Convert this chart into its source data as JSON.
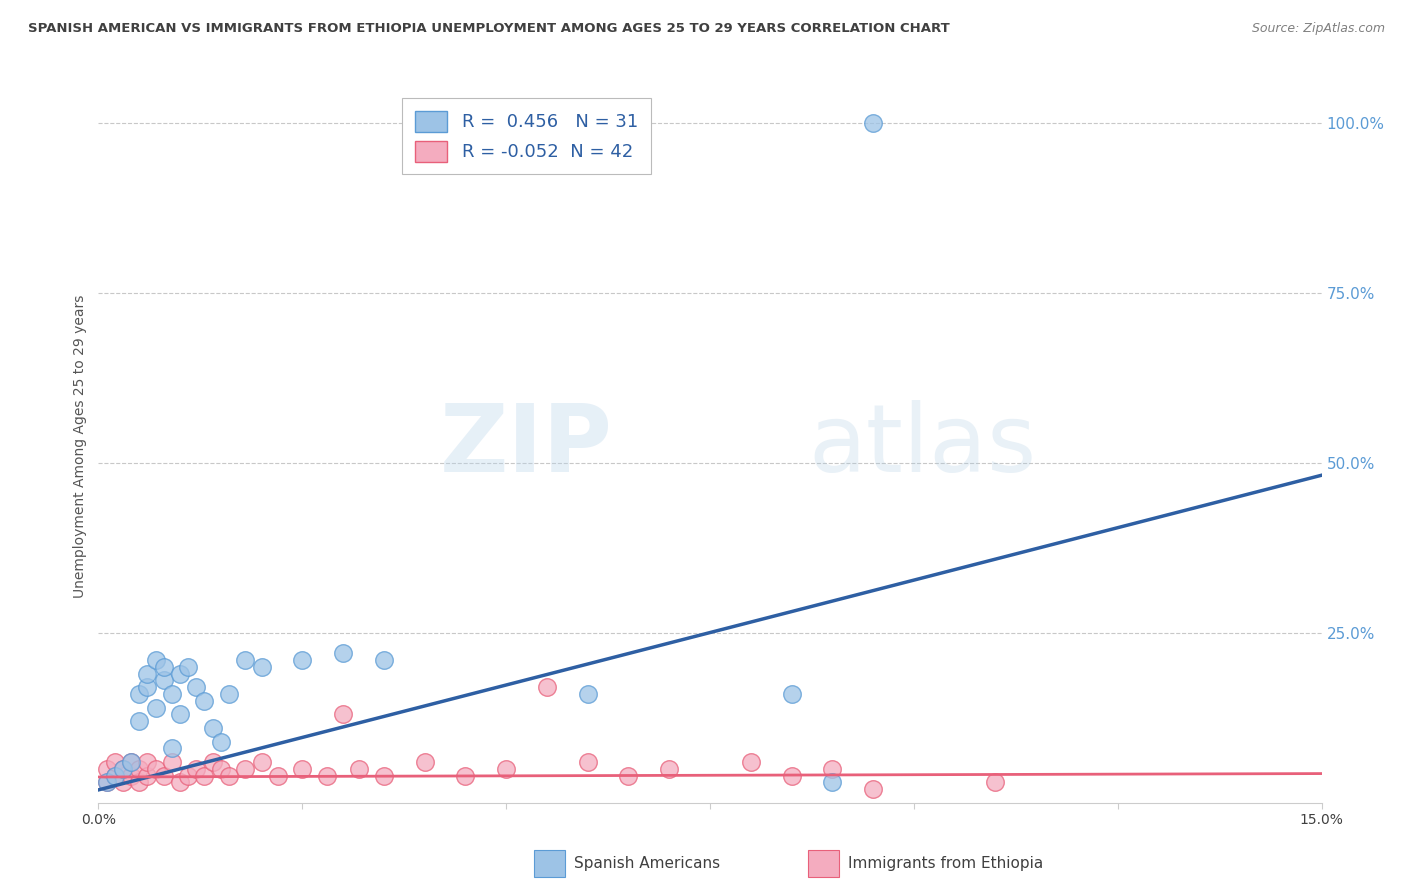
{
  "title": "SPANISH AMERICAN VS IMMIGRANTS FROM ETHIOPIA UNEMPLOYMENT AMONG AGES 25 TO 29 YEARS CORRELATION CHART",
  "source": "Source: ZipAtlas.com",
  "ylabel": "Unemployment Among Ages 25 to 29 years",
  "xlim": [
    0.0,
    0.15
  ],
  "ylim": [
    0.0,
    1.05
  ],
  "blue_R": 0.456,
  "blue_N": 31,
  "pink_R": -0.052,
  "pink_N": 42,
  "legend_label_blue": "Spanish Americans",
  "legend_label_pink": "Immigrants from Ethiopia",
  "watermark_zip": "ZIP",
  "watermark_atlas": "atlas",
  "background_color": "#ffffff",
  "blue_color": "#9DC3E6",
  "blue_edge_color": "#5B9BD5",
  "blue_line_color": "#2E5FA3",
  "pink_color": "#F4ACBF",
  "pink_edge_color": "#E8607A",
  "pink_line_color": "#E8607A",
  "grid_color": "#c8c8c8",
  "title_color": "#404040",
  "source_color": "#808080",
  "axis_label_color": "#555555",
  "right_tick_color": "#5B9BD5",
  "blue_line_x0": 0.0,
  "blue_line_y0": 0.019,
  "blue_line_x1": 0.15,
  "blue_line_y1": 0.482,
  "pink_line_x0": 0.0,
  "pink_line_y0": 0.038,
  "pink_line_x1": 0.15,
  "pink_line_y1": 0.043,
  "blue_scatter_x": [
    0.001,
    0.002,
    0.003,
    0.004,
    0.005,
    0.005,
    0.006,
    0.006,
    0.007,
    0.007,
    0.008,
    0.008,
    0.009,
    0.009,
    0.01,
    0.01,
    0.011,
    0.012,
    0.013,
    0.014,
    0.015,
    0.016,
    0.018,
    0.02,
    0.025,
    0.03,
    0.035,
    0.06,
    0.085,
    0.09,
    0.095
  ],
  "blue_scatter_y": [
    0.03,
    0.04,
    0.05,
    0.06,
    0.12,
    0.16,
    0.17,
    0.19,
    0.14,
    0.21,
    0.18,
    0.2,
    0.08,
    0.16,
    0.13,
    0.19,
    0.2,
    0.17,
    0.15,
    0.11,
    0.09,
    0.16,
    0.21,
    0.2,
    0.21,
    0.22,
    0.21,
    0.16,
    0.16,
    0.03,
    1.0
  ],
  "pink_scatter_x": [
    0.001,
    0.001,
    0.002,
    0.002,
    0.003,
    0.003,
    0.004,
    0.004,
    0.005,
    0.005,
    0.006,
    0.006,
    0.007,
    0.008,
    0.009,
    0.01,
    0.011,
    0.012,
    0.013,
    0.014,
    0.015,
    0.016,
    0.018,
    0.02,
    0.022,
    0.025,
    0.028,
    0.03,
    0.032,
    0.035,
    0.04,
    0.045,
    0.05,
    0.055,
    0.06,
    0.065,
    0.07,
    0.08,
    0.085,
    0.09,
    0.095,
    0.11
  ],
  "pink_scatter_y": [
    0.03,
    0.05,
    0.04,
    0.06,
    0.03,
    0.05,
    0.04,
    0.06,
    0.03,
    0.05,
    0.04,
    0.06,
    0.05,
    0.04,
    0.06,
    0.03,
    0.04,
    0.05,
    0.04,
    0.06,
    0.05,
    0.04,
    0.05,
    0.06,
    0.04,
    0.05,
    0.04,
    0.13,
    0.05,
    0.04,
    0.06,
    0.04,
    0.05,
    0.17,
    0.06,
    0.04,
    0.05,
    0.06,
    0.04,
    0.05,
    0.02,
    0.03
  ]
}
